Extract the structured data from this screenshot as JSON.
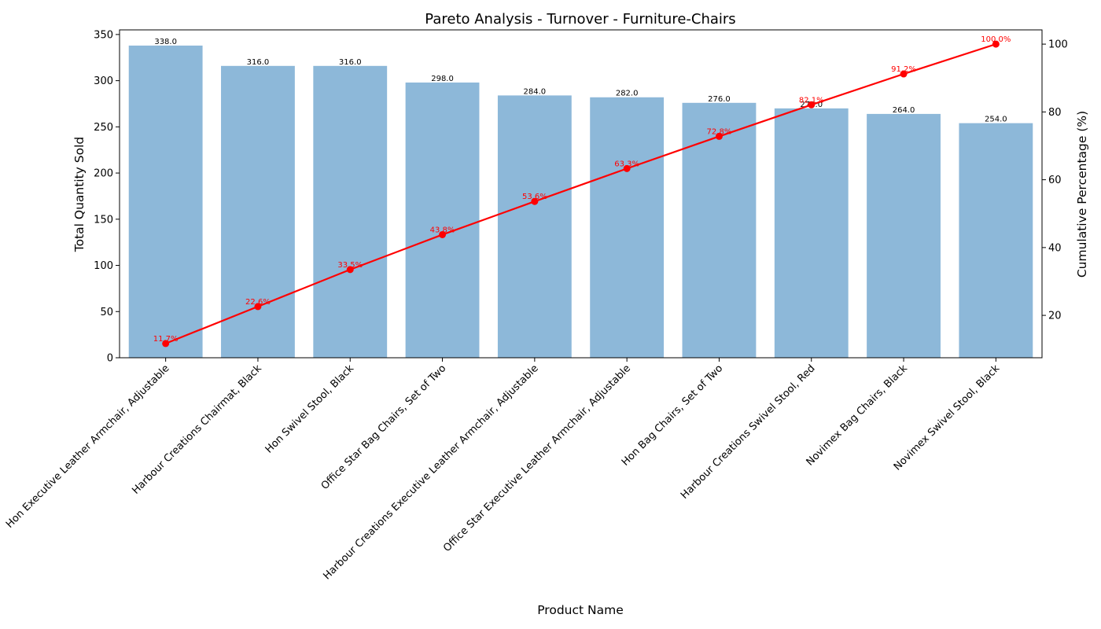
{
  "chart_data": {
    "type": "bar",
    "title": "Pareto Analysis - Turnover - Furniture-Chairs",
    "xlabel": "Product Name",
    "ylabel": "Total Quantity Sold",
    "y2label": "Cumulative Percentage (%)",
    "categories": [
      "Hon Executive Leather Armchair, Adjustable",
      "Harbour Creations Chairmat, Black",
      "Hon Swivel Stool, Black",
      "Office Star Bag Chairs, Set of Two",
      "Harbour Creations Executive Leather Armchair, Adjustable",
      "Office Star Executive Leather Armchair, Adjustable",
      "Hon Bag Chairs, Set of Two",
      "Harbour Creations Swivel Stool, Red",
      "Novimex Bag Chairs, Black",
      "Novimex Swivel Stool, Black"
    ],
    "series": [
      {
        "type": "bar",
        "values": [
          338,
          316,
          316,
          298,
          284,
          282,
          276,
          270,
          264,
          254
        ],
        "labels": [
          "338.0",
          "316.0",
          "316.0",
          "298.0",
          "284.0",
          "282.0",
          "276.0",
          "270.0",
          "264.0",
          "254.0"
        ],
        "color": "#8db8d9"
      },
      {
        "type": "line",
        "axis": "right",
        "values": [
          11.7,
          22.6,
          33.5,
          43.8,
          53.6,
          63.3,
          72.8,
          82.1,
          91.2,
          100.0
        ],
        "labels": [
          "11.7%",
          "22.6%",
          "33.5%",
          "43.8%",
          "53.6%",
          "63.3%",
          "72.8%",
          "82.1%",
          "91.2%",
          "100.0%"
        ],
        "color": "#ff0000"
      }
    ],
    "ylim": [
      0,
      355
    ],
    "yticks": [
      "0",
      "50",
      "100",
      "150",
      "200",
      "250",
      "300",
      "350"
    ],
    "y2lim": [
      7.5,
      104.2
    ],
    "y2ticks": [
      "20",
      "40",
      "60",
      "80",
      "100"
    ],
    "grid": false,
    "legend": "none"
  }
}
